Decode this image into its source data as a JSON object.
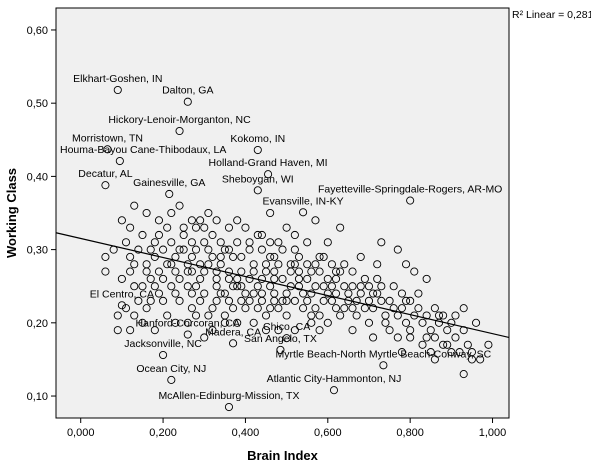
{
  "chart_data": {
    "type": "scatter",
    "xlabel": "Brain Index",
    "ylabel": "Working Class",
    "xlim": [
      -0.06,
      1.04
    ],
    "ylim": [
      0.07,
      0.63
    ],
    "xticks": [
      0.0,
      0.2,
      0.4,
      0.6,
      0.8,
      1.0
    ],
    "xtick_labels": [
      "0,000",
      "0,200",
      "0,400",
      "0,600",
      "0,800",
      "1,000"
    ],
    "yticks": [
      0.1,
      0.2,
      0.3,
      0.4,
      0.5,
      0.6
    ],
    "ytick_labels": [
      "0,10",
      "0,20",
      "0,30",
      "0,40",
      "0,50",
      "0,60"
    ],
    "grid": false,
    "fit_line": {
      "x": [
        -0.06,
        1.04
      ],
      "y": [
        0.323,
        0.18
      ]
    },
    "r2_text": "R² Linear = 0,281",
    "colors": {
      "plot_background": "#f0f0f0",
      "points": "#000000",
      "line": "#000000"
    },
    "labeled_points": [
      {
        "label": "Elkhart-Goshen, IN",
        "x": 0.09,
        "y": 0.518
      },
      {
        "label": "Dalton, GA",
        "x": 0.26,
        "y": 0.502
      },
      {
        "label": "Hickory-Lenoir-Morganton, NC",
        "x": 0.24,
        "y": 0.462
      },
      {
        "label": "Morristown, TN",
        "x": 0.065,
        "y": 0.437
      },
      {
        "label": "Kokomo, IN",
        "x": 0.43,
        "y": 0.436
      },
      {
        "label": "Houma-Bayou Cane-Thibodaux, LA",
        "x": 0.095,
        "y": 0.421
      },
      {
        "label": "Decatur, AL",
        "x": 0.06,
        "y": 0.388
      },
      {
        "label": "Holland-Grand Haven, MI",
        "x": 0.455,
        "y": 0.403
      },
      {
        "label": "Sheboygan, WI",
        "x": 0.43,
        "y": 0.381
      },
      {
        "label": "Gainesville, GA",
        "x": 0.215,
        "y": 0.376
      },
      {
        "label": "Fayetteville-Springdale-Rogers, AR-MO",
        "x": 0.8,
        "y": 0.367
      },
      {
        "label": "Evansville, IN-KY",
        "x": 0.54,
        "y": 0.351
      },
      {
        "label": "El Centro, CA",
        "x": 0.1,
        "y": 0.224
      },
      {
        "label": "Hanford-Corcoran, CA",
        "x": 0.26,
        "y": 0.184
      },
      {
        "label": "Chico, CA",
        "x": 0.5,
        "y": 0.179
      },
      {
        "label": "Madera, CA",
        "x": 0.37,
        "y": 0.172
      },
      {
        "label": "Jacksonville, NC",
        "x": 0.2,
        "y": 0.156
      },
      {
        "label": "San Angelo, TX",
        "x": 0.485,
        "y": 0.163
      },
      {
        "label": "Myrtle Beach-North Myrtle Beach-Conway, SC",
        "x": 0.735,
        "y": 0.142
      },
      {
        "label": "Ocean City, NJ",
        "x": 0.22,
        "y": 0.122
      },
      {
        "label": "Atlantic City-Hammonton, NJ",
        "x": 0.615,
        "y": 0.108
      },
      {
        "label": "McAllen-Edinburg-Mission, TX",
        "x": 0.36,
        "y": 0.085
      }
    ],
    "points": [
      [
        0.19,
        0.32
      ],
      [
        0.34,
        0.31
      ],
      [
        0.41,
        0.3
      ],
      [
        0.87,
        0.2
      ],
      [
        0.36,
        0.26
      ],
      [
        0.06,
        0.27
      ],
      [
        0.28,
        0.3
      ],
      [
        0.17,
        0.23
      ],
      [
        0.49,
        0.23
      ],
      [
        0.62,
        0.26
      ],
      [
        0.46,
        0.29
      ],
      [
        0.26,
        0.28
      ],
      [
        0.44,
        0.26
      ],
      [
        0.21,
        0.28
      ],
      [
        0.56,
        0.24
      ],
      [
        0.38,
        0.25
      ],
      [
        0.72,
        0.24
      ],
      [
        0.64,
        0.22
      ],
      [
        0.3,
        0.27
      ],
      [
        0.52,
        0.28
      ],
      [
        0.35,
        0.24
      ],
      [
        0.79,
        0.2
      ],
      [
        0.14,
        0.3
      ],
      [
        0.58,
        0.29
      ],
      [
        0.24,
        0.26
      ],
      [
        0.47,
        0.24
      ],
      [
        0.68,
        0.24
      ],
      [
        0.32,
        0.29
      ],
      [
        0.4,
        0.22
      ],
      [
        0.91,
        0.18
      ],
      [
        0.12,
        0.29
      ],
      [
        0.27,
        0.24
      ],
      [
        0.55,
        0.28
      ],
      [
        0.43,
        0.32
      ],
      [
        0.76,
        0.22
      ],
      [
        0.33,
        0.26
      ],
      [
        0.61,
        0.23
      ],
      [
        0.18,
        0.29
      ],
      [
        0.5,
        0.21
      ],
      [
        0.85,
        0.19
      ],
      [
        0.22,
        0.31
      ],
      [
        0.45,
        0.27
      ],
      [
        0.66,
        0.25
      ],
      [
        0.29,
        0.23
      ],
      [
        0.53,
        0.26
      ],
      [
        0.37,
        0.29
      ],
      [
        0.74,
        0.21
      ],
      [
        0.16,
        0.27
      ],
      [
        0.59,
        0.25
      ],
      [
        0.42,
        0.24
      ],
      [
        0.25,
        0.3
      ],
      [
        0.82,
        0.22
      ],
      [
        0.48,
        0.28
      ],
      [
        0.31,
        0.21
      ],
      [
        0.63,
        0.27
      ],
      [
        0.2,
        0.26
      ],
      [
        0.57,
        0.22
      ],
      [
        0.39,
        0.27
      ],
      [
        0.7,
        0.23
      ],
      [
        0.13,
        0.25
      ],
      [
        0.54,
        0.24
      ],
      [
        0.88,
        0.21
      ],
      [
        0.34,
        0.28
      ],
      [
        0.46,
        0.25
      ],
      [
        0.23,
        0.29
      ],
      [
        0.67,
        0.21
      ],
      [
        0.28,
        0.33
      ],
      [
        0.51,
        0.27
      ],
      [
        0.78,
        0.24
      ],
      [
        0.41,
        0.26
      ],
      [
        0.15,
        0.32
      ],
      [
        0.6,
        0.26
      ],
      [
        0.36,
        0.23
      ],
      [
        0.73,
        0.25
      ],
      [
        0.26,
        0.27
      ],
      [
        0.49,
        0.3
      ],
      [
        0.94,
        0.17
      ],
      [
        0.19,
        0.24
      ],
      [
        0.56,
        0.27
      ],
      [
        0.44,
        0.23
      ],
      [
        0.3,
        0.31
      ],
      [
        0.65,
        0.23
      ],
      [
        0.83,
        0.2
      ],
      [
        0.38,
        0.31
      ],
      [
        0.52,
        0.23
      ],
      [
        0.21,
        0.21
      ],
      [
        0.69,
        0.26
      ],
      [
        0.47,
        0.26
      ],
      [
        0.33,
        0.25
      ],
      [
        0.8,
        0.23
      ],
      [
        0.11,
        0.31
      ],
      [
        0.58,
        0.21
      ],
      [
        0.42,
        0.28
      ],
      [
        0.27,
        0.31
      ],
      [
        0.62,
        0.24
      ],
      [
        0.75,
        0.19
      ],
      [
        0.35,
        0.3
      ],
      [
        0.53,
        0.29
      ],
      [
        0.17,
        0.26
      ],
      [
        0.9,
        0.2
      ],
      [
        0.4,
        0.24
      ],
      [
        0.24,
        0.23
      ],
      [
        0.66,
        0.22
      ],
      [
        0.48,
        0.22
      ],
      [
        0.31,
        0.28
      ],
      [
        0.71,
        0.22
      ],
      [
        0.2,
        0.3
      ],
      [
        0.57,
        0.25
      ],
      [
        0.44,
        0.3
      ],
      [
        0.86,
        0.22
      ],
      [
        0.37,
        0.22
      ],
      [
        0.13,
        0.28
      ],
      [
        0.61,
        0.28
      ],
      [
        0.29,
        0.26
      ],
      [
        0.51,
        0.25
      ],
      [
        0.77,
        0.21
      ],
      [
        0.39,
        0.29
      ],
      [
        0.23,
        0.27
      ],
      [
        0.64,
        0.25
      ],
      [
        0.46,
        0.31
      ],
      [
        0.33,
        0.23
      ],
      [
        0.84,
        0.18
      ],
      [
        0.55,
        0.26
      ],
      [
        0.18,
        0.31
      ],
      [
        0.43,
        0.25
      ],
      [
        0.7,
        0.2
      ],
      [
        0.27,
        0.29
      ],
      [
        0.59,
        0.23
      ],
      [
        0.36,
        0.27
      ],
      [
        0.93,
        0.19
      ],
      [
        0.22,
        0.25
      ],
      [
        0.5,
        0.24
      ],
      [
        0.68,
        0.25
      ],
      [
        0.32,
        0.32
      ],
      [
        0.45,
        0.21
      ],
      [
        0.81,
        0.21
      ],
      [
        0.16,
        0.28
      ],
      [
        0.62,
        0.22
      ],
      [
        0.38,
        0.26
      ],
      [
        0.25,
        0.32
      ],
      [
        0.54,
        0.22
      ],
      [
        0.73,
        0.23
      ],
      [
        0.41,
        0.31
      ],
      [
        0.28,
        0.25
      ],
      [
        0.88,
        0.17
      ],
      [
        0.47,
        0.27
      ],
      [
        0.19,
        0.27
      ],
      [
        0.6,
        0.24
      ],
      [
        0.34,
        0.24
      ],
      [
        0.76,
        0.25
      ],
      [
        0.52,
        0.3
      ],
      [
        0.14,
        0.23
      ],
      [
        0.66,
        0.27
      ],
      [
        0.3,
        0.24
      ],
      [
        0.43,
        0.22
      ],
      [
        0.79,
        0.23
      ],
      [
        0.24,
        0.3
      ],
      [
        0.57,
        0.28
      ],
      [
        0.39,
        0.23
      ],
      [
        0.95,
        0.15
      ],
      [
        0.21,
        0.33
      ],
      [
        0.49,
        0.26
      ],
      [
        0.71,
        0.24
      ],
      [
        0.35,
        0.21
      ],
      [
        0.63,
        0.21
      ],
      [
        0.27,
        0.22
      ],
      [
        0.84,
        0.21
      ],
      [
        0.45,
        0.28
      ],
      [
        0.17,
        0.3
      ],
      [
        0.55,
        0.23
      ],
      [
        0.4,
        0.33
      ],
      [
        0.74,
        0.2
      ],
      [
        0.31,
        0.3
      ],
      [
        0.58,
        0.27
      ],
      [
        0.23,
        0.24
      ],
      [
        0.89,
        0.19
      ],
      [
        0.47,
        0.23
      ],
      [
        0.36,
        0.3
      ],
      [
        0.67,
        0.23
      ],
      [
        0.12,
        0.27
      ],
      [
        0.53,
        0.25
      ],
      [
        0.8,
        0.19
      ],
      [
        0.29,
        0.28
      ],
      [
        0.42,
        0.27
      ],
      [
        0.61,
        0.25
      ],
      [
        0.2,
        0.23
      ],
      [
        0.72,
        0.26
      ],
      [
        0.48,
        0.31
      ],
      [
        0.33,
        0.27
      ],
      [
        0.86,
        0.18
      ],
      [
        0.26,
        0.25
      ],
      [
        0.56,
        0.21
      ],
      [
        0.39,
        0.25
      ],
      [
        0.69,
        0.22
      ],
      [
        0.15,
        0.25
      ],
      [
        0.51,
        0.28
      ],
      [
        0.78,
        0.22
      ],
      [
        0.44,
        0.24
      ],
      [
        0.3,
        0.33
      ],
      [
        0.64,
        0.28
      ],
      [
        0.82,
        0.24
      ],
      [
        0.37,
        0.25
      ],
      [
        0.22,
        0.28
      ],
      [
        0.59,
        0.29
      ],
      [
        0.46,
        0.22
      ],
      [
        0.91,
        0.21
      ],
      [
        0.34,
        0.29
      ],
      [
        0.27,
        0.27
      ],
      [
        0.5,
        0.23
      ],
      [
        0.75,
        0.23
      ],
      [
        0.18,
        0.25
      ],
      [
        0.62,
        0.27
      ],
      [
        0.41,
        0.23
      ],
      [
        0.7,
        0.25
      ],
      [
        0.25,
        0.33
      ],
      [
        0.53,
        0.27
      ],
      [
        0.32,
        0.22
      ],
      [
        0.87,
        0.21
      ],
      [
        0.47,
        0.29
      ],
      [
        0.65,
        0.24
      ],
      [
        0.09,
        0.19
      ],
      [
        0.28,
        0.21
      ],
      [
        0.35,
        0.2
      ],
      [
        0.42,
        0.2
      ],
      [
        0.48,
        0.19
      ],
      [
        0.58,
        0.19
      ],
      [
        0.66,
        0.19
      ],
      [
        0.71,
        0.18
      ],
      [
        0.8,
        0.18
      ],
      [
        0.89,
        0.17
      ],
      [
        0.32,
        0.19
      ],
      [
        0.45,
        0.19
      ],
      [
        0.56,
        0.2
      ],
      [
        0.77,
        0.18
      ],
      [
        0.92,
        0.16
      ],
      [
        0.15,
        0.2
      ],
      [
        0.38,
        0.2
      ],
      [
        0.6,
        0.2
      ],
      [
        0.85,
        0.16
      ],
      [
        0.52,
        0.19
      ],
      [
        0.1,
        0.34
      ],
      [
        0.16,
        0.35
      ],
      [
        0.22,
        0.35
      ],
      [
        0.27,
        0.34
      ],
      [
        0.33,
        0.34
      ],
      [
        0.38,
        0.34
      ],
      [
        0.46,
        0.35
      ],
      [
        0.5,
        0.33
      ],
      [
        0.57,
        0.34
      ],
      [
        0.63,
        0.33
      ],
      [
        0.12,
        0.33
      ],
      [
        0.24,
        0.36
      ],
      [
        0.31,
        0.35
      ],
      [
        0.36,
        0.33
      ],
      [
        0.44,
        0.32
      ],
      [
        0.52,
        0.32
      ],
      [
        0.13,
        0.36
      ],
      [
        0.19,
        0.34
      ],
      [
        0.29,
        0.34
      ],
      [
        0.55,
        0.31
      ],
      [
        0.73,
        0.31
      ],
      [
        0.77,
        0.3
      ],
      [
        0.6,
        0.31
      ],
      [
        0.68,
        0.29
      ],
      [
        0.81,
        0.27
      ],
      [
        0.84,
        0.26
      ],
      [
        0.79,
        0.28
      ],
      [
        0.72,
        0.28
      ],
      [
        0.93,
        0.22
      ],
      [
        0.96,
        0.2
      ],
      [
        0.99,
        0.17
      ],
      [
        0.97,
        0.15
      ],
      [
        0.93,
        0.13
      ],
      [
        0.95,
        0.16
      ],
      [
        0.9,
        0.16
      ],
      [
        0.86,
        0.15
      ],
      [
        0.83,
        0.17
      ],
      [
        0.78,
        0.16
      ],
      [
        0.08,
        0.3
      ],
      [
        0.06,
        0.29
      ],
      [
        0.1,
        0.26
      ],
      [
        0.11,
        0.22
      ],
      [
        0.09,
        0.21
      ],
      [
        0.13,
        0.21
      ],
      [
        0.16,
        0.22
      ],
      [
        0.18,
        0.19
      ],
      [
        0.12,
        0.19
      ],
      [
        0.3,
        0.18
      ],
      [
        0.26,
        0.2
      ],
      [
        0.23,
        0.2
      ]
    ]
  }
}
